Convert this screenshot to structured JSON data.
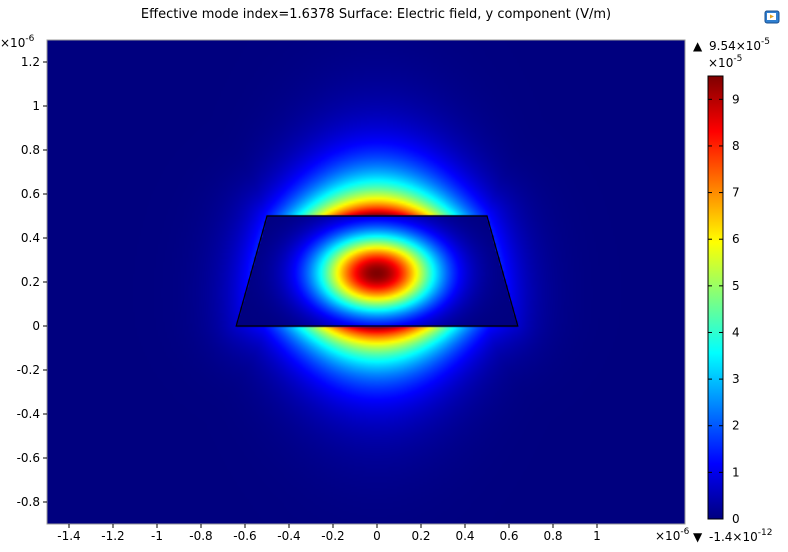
{
  "chart_data": {
    "type": "heatmap",
    "title": "Effective mode index=1.6378   Surface: Electric field, y component (V/m)",
    "x_multiplier": "×10",
    "x_multiplier_exp": "-6",
    "y_multiplier": "×10",
    "y_multiplier_exp": "-6",
    "xlim": [
      -1.5,
      1.4
    ],
    "ylim": [
      -0.9,
      1.3
    ],
    "x_ticks": [
      -1.4,
      -1.2,
      -1,
      -0.8,
      -0.6,
      -0.4,
      -0.2,
      0,
      0.2,
      0.4,
      0.6,
      0.8,
      1
    ],
    "x_tick_labels": [
      "-1.4",
      "-1.2",
      "-1",
      "-0.8",
      "-0.6",
      "-0.4",
      "-0.2",
      "0",
      "0.2",
      "0.4",
      "0.6",
      "0.8",
      "1"
    ],
    "y_ticks": [
      1.2,
      1,
      0.8,
      0.6,
      0.4,
      0.2,
      0,
      -0.2,
      -0.4,
      -0.6,
      -0.8
    ],
    "y_tick_labels": [
      "1.2",
      "1",
      "0.8",
      "0.6",
      "0.4",
      "0.2",
      "0",
      "-0.2",
      "-0.4",
      "-0.6",
      "-0.8"
    ],
    "waveguide_outline": [
      [
        -0.5,
        0.5
      ],
      [
        0.5,
        0.5
      ],
      [
        0.64,
        0.0
      ],
      [
        -0.64,
        0.0
      ]
    ],
    "colorbar": {
      "min": 0,
      "max": 9.5,
      "ticks": [
        0,
        1,
        2,
        3,
        4,
        5,
        6,
        7,
        8,
        9
      ],
      "tick_labels": [
        "0",
        "1",
        "2",
        "3",
        "4",
        "5",
        "6",
        "7",
        "8",
        "9"
      ],
      "multiplier": "×10",
      "multiplier_exp": "-5",
      "max_marker": "▲",
      "max_label": "9.54×10",
      "max_exp": "-5",
      "min_marker": "▼",
      "min_label": "-1.4×10",
      "min_exp": "-12",
      "colormap": "rainbow",
      "colors": [
        "#00007f",
        "#0000ff",
        "#007fff",
        "#00ffff",
        "#7fff7f",
        "#ffff00",
        "#ff7f00",
        "#ff0000",
        "#7f0000"
      ]
    },
    "grid": false,
    "legend": "colorbar-right"
  },
  "toolbar": {
    "export_icon": "export-icon"
  }
}
